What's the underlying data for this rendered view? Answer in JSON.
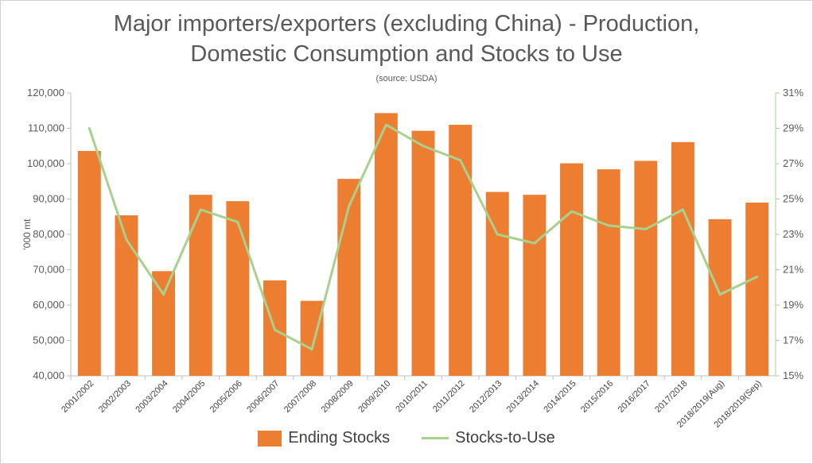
{
  "chart_data": {
    "type": "bar",
    "title_line1": "Major importers/exporters (excluding China) - Production,",
    "title_line2": "Domestic Consumption and Stocks to Use",
    "subtitle": "(source: USDA)",
    "ylabel": "'000 mt",
    "categories": [
      "2001/2002",
      "2002/2003",
      "2003/2004",
      "2004/2005",
      "2005/2006",
      "2006/2007",
      "2007/2008",
      "2008/2009",
      "2009/2010",
      "2010/2011",
      "2011/2012",
      "2012/2013",
      "2013/2014",
      "2014/2015",
      "2015/2016",
      "2016/2017",
      "2017/2018",
      "2018/2019(Aug)",
      "2018/2019(Sep)"
    ],
    "series": [
      {
        "name": "Ending Stocks",
        "kind": "bar",
        "axis": "left",
        "color": "#ED7D31",
        "values": [
          103600,
          85400,
          69600,
          91200,
          89400,
          67000,
          61200,
          95700,
          114300,
          109300,
          111000,
          92000,
          91200,
          100100,
          98400,
          100800,
          106100,
          84300,
          89000
        ]
      },
      {
        "name": "Stocks-to-Use",
        "kind": "line",
        "axis": "right",
        "color": "#A9D18E",
        "values": [
          29.0,
          22.7,
          19.6,
          24.4,
          23.7,
          17.6,
          16.5,
          24.6,
          29.2,
          28.0,
          27.2,
          23.0,
          22.5,
          24.3,
          23.5,
          23.3,
          24.4,
          19.6,
          20.6
        ]
      }
    ],
    "ylim_left": [
      40000,
      120000
    ],
    "yticks_left": [
      "40,000",
      "50,000",
      "60,000",
      "70,000",
      "80,000",
      "90,000",
      "100,000",
      "110,000",
      "120,000"
    ],
    "ylim_right": [
      15,
      31
    ],
    "yticks_right": [
      "15%",
      "17%",
      "19%",
      "21%",
      "23%",
      "25%",
      "27%",
      "29%",
      "31%"
    ],
    "legend_position": "bottom",
    "grid": false
  }
}
